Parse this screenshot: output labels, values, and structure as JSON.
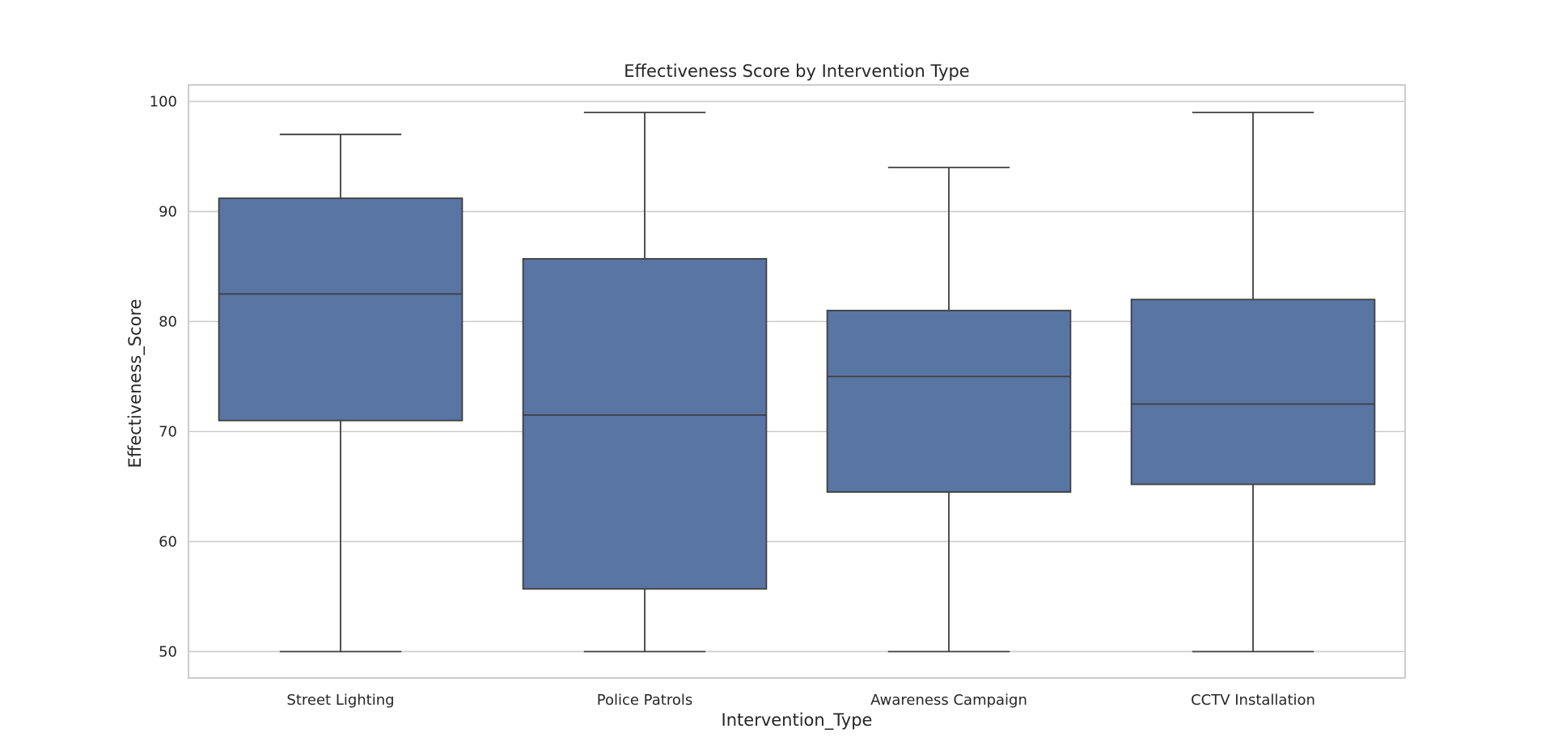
{
  "chart_data": {
    "type": "box",
    "title": "Effectiveness Score by Intervention Type",
    "xlabel": "Intervention_Type",
    "ylabel": "Effectiveness_Score",
    "ylim": [
      47.6,
      101.5
    ],
    "yticks": [
      50,
      60,
      70,
      80,
      90,
      100
    ],
    "ytick_labels": [
      "50",
      "60",
      "70",
      "80",
      "90",
      "100"
    ],
    "grid": true,
    "box_color": "#5875a4",
    "categories": [
      "Street Lighting",
      "Police Patrols",
      "Awareness Campaign",
      "CCTV Installation"
    ],
    "boxes": [
      {
        "category": "Street Lighting",
        "whisker_low": 50,
        "q1": 71.0,
        "median": 82.5,
        "q3": 91.2,
        "whisker_high": 97
      },
      {
        "category": "Police Patrols",
        "whisker_low": 50,
        "q1": 55.7,
        "median": 71.5,
        "q3": 85.7,
        "whisker_high": 99
      },
      {
        "category": "Awareness Campaign",
        "whisker_low": 50,
        "q1": 64.5,
        "median": 75.0,
        "q3": 81.0,
        "whisker_high": 94
      },
      {
        "category": "CCTV Installation",
        "whisker_low": 50,
        "q1": 65.2,
        "median": 72.5,
        "q3": 82.0,
        "whisker_high": 99
      }
    ]
  }
}
